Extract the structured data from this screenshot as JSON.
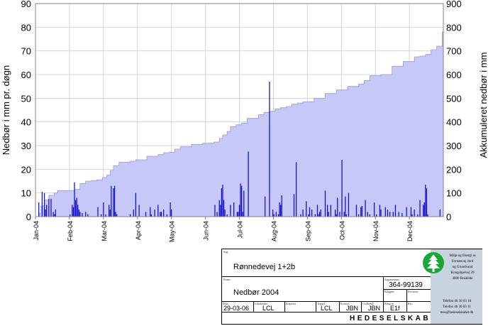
{
  "chart_data": {
    "type": "bar",
    "title": "",
    "ylabel": "Nedbør i mm pr. døgn",
    "ylabel_right": "Akkumuleret nedbør i mm",
    "ylim": [
      0,
      90
    ],
    "ylim_right": [
      0,
      900
    ],
    "yticks": [
      0,
      10,
      20,
      30,
      40,
      50,
      60,
      70,
      80,
      90
    ],
    "yticks_right": [
      0,
      100,
      200,
      300,
      400,
      500,
      600,
      700,
      800,
      900
    ],
    "grid": true,
    "xlabels": [
      "Jan-04",
      "Feb-04",
      "Mar-04",
      "Apr-04",
      "May-04",
      "Jun-04",
      "Jul-04",
      "Aug-04",
      "Sep-04",
      "Oct-04",
      "Nov-04",
      "Dec-04"
    ],
    "xrange_days": [
      0,
      366
    ],
    "series": [
      {
        "kind": "daily_bars",
        "color": "#1010c8",
        "day": [
          3,
          6,
          8,
          9,
          10,
          12,
          14,
          16,
          17,
          18,
          31,
          33,
          34,
          35,
          36,
          37,
          38,
          39,
          40,
          42,
          45,
          47,
          56,
          59,
          61,
          63,
          66,
          67,
          68,
          70,
          71,
          72,
          73,
          85,
          88,
          90,
          93,
          99,
          103,
          104,
          107,
          110,
          112,
          113,
          115,
          118,
          121,
          122,
          161,
          163,
          165,
          166,
          167,
          168,
          169,
          170,
          172,
          175,
          178,
          181,
          182,
          183,
          184,
          185,
          186,
          187,
          191,
          206,
          210,
          213,
          214,
          216,
          218,
          219,
          220,
          221,
          232,
          234,
          238,
          240,
          243,
          245,
          246,
          248,
          251,
          253,
          254,
          255,
          256,
          260,
          262,
          263,
          265,
          269,
          270,
          271,
          273,
          275,
          277,
          278,
          279,
          281,
          288,
          290,
          292,
          293,
          296,
          298,
          300,
          304,
          306,
          309,
          310,
          314,
          316,
          318,
          321,
          323,
          326,
          329,
          333,
          337,
          338,
          340,
          343,
          345,
          348,
          349,
          350,
          351,
          352,
          363,
          365
        ],
        "values": [
          6,
          10.5,
          10,
          3,
          5,
          7.5,
          7.5,
          2,
          1,
          3,
          1,
          5,
          4,
          14.5,
          7,
          8,
          5,
          3,
          2,
          1.5,
          2,
          1,
          4,
          1,
          6,
          1,
          5,
          3,
          13,
          12,
          13,
          2,
          1,
          1,
          3,
          10,
          5,
          2,
          4,
          1,
          3,
          5,
          2,
          2,
          3,
          1,
          6,
          3,
          5,
          2,
          7,
          5,
          12,
          13.5,
          7,
          3,
          1,
          5,
          6,
          2,
          2,
          5,
          14,
          13,
          2,
          11,
          27.5,
          8.5,
          57,
          3,
          1,
          2,
          1,
          6,
          5,
          9,
          9.5,
          23,
          1,
          3,
          6.5,
          1,
          4,
          3,
          1,
          5,
          1,
          2,
          3,
          11,
          5,
          2,
          5,
          3,
          1,
          8,
          2,
          24,
          2,
          8.5,
          1,
          10,
          5,
          1,
          4,
          4.5,
          7,
          2,
          1,
          6,
          1,
          5,
          3,
          4,
          3,
          2,
          2,
          5,
          2,
          1.5,
          4,
          4,
          1,
          3,
          1,
          7,
          5,
          6,
          13.5,
          12,
          1,
          3
        ]
      },
      {
        "kind": "cumulative_area",
        "color": "#c8c8f8",
        "day": [
          0,
          3,
          5,
          8,
          12,
          17,
          20,
          30,
          35,
          40,
          45,
          50,
          55,
          60,
          64,
          67,
          70,
          75,
          85,
          90,
          95,
          100,
          110,
          115,
          120,
          125,
          130,
          140,
          150,
          160,
          165,
          168,
          172,
          175,
          180,
          185,
          190,
          200,
          205,
          210,
          215,
          220,
          225,
          230,
          235,
          240,
          250,
          260,
          270,
          280,
          290,
          295,
          300,
          310,
          320,
          330,
          340,
          345,
          350,
          355,
          360,
          365,
          366
        ],
        "values": [
          0,
          15,
          45,
          70,
          90,
          100,
          110,
          110,
          115,
          140,
          150,
          152,
          155,
          165,
          175,
          195,
          215,
          230,
          234,
          240,
          240,
          255,
          262,
          270,
          272,
          285,
          295,
          305,
          310,
          315,
          330,
          345,
          360,
          380,
          388,
          395,
          415,
          430,
          440,
          445,
          455,
          460,
          465,
          475,
          480,
          485,
          500,
          520,
          535,
          550,
          560,
          575,
          595,
          600,
          635,
          655,
          675,
          678,
          685,
          705,
          720,
          780,
          800
        ]
      }
    ]
  },
  "title_block": {
    "sag_label": "Sag:",
    "sag_value": "Rønnedevej 1+2b",
    "emne_label": "Emne:",
    "emne_value": "Nedbør 2004",
    "sagsnr_label": "Sagsnummer",
    "sagsnr_value": "364-99139",
    "bilag_label": "Bilagsnr.",
    "revision_label": "Revision",
    "dato_label": "Dato",
    "dato_value": "29-03-06",
    "udarb_label": "Udarbejdet",
    "udarb_value": "LCL",
    "kopieret_label": "Kopieret",
    "tegnet_label": "Tegnet",
    "tegnet_value": "LCL",
    "kontrol_label": "Kontrol",
    "kontrol_value": "JBN",
    "godkendt_label": "Godkendt",
    "godkendt_value": "JBN",
    "bilagsref_label": "Bilag nr.",
    "bilagsref_value": "E1f",
    "rev2_label": "Rev.",
    "company": "HEDESELSKABET",
    "address_lines": [
      "Miljø og Energi as",
      "Fornæsvej Jord",
      "og Grundvand",
      "Kongsbjelvej 29",
      "4000 Roskilde"
    ],
    "contact_lines": [
      "Telefon 46 30 03 10",
      "Telefax 46 30 03 11",
      "mes@hedeselskabet.dk"
    ]
  }
}
